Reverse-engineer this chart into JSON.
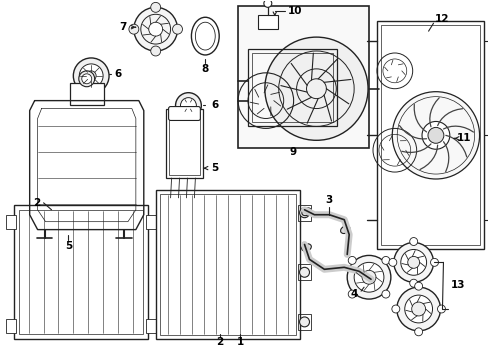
{
  "bg_color": "#ffffff",
  "line_color": "#222222",
  "label_color": "#000000",
  "fig_w": 4.9,
  "fig_h": 3.6,
  "dpi": 100
}
